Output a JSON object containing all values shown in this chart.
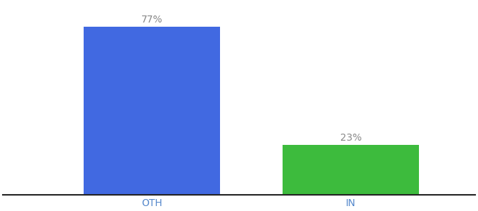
{
  "categories": [
    "OTH",
    "IN"
  ],
  "values": [
    77,
    23
  ],
  "bar_colors": [
    "#4169e1",
    "#3dbb3d"
  ],
  "label_texts": [
    "77%",
    "23%"
  ],
  "background_color": "#ffffff",
  "label_color": "#888888",
  "label_fontsize": 10,
  "tick_fontsize": 10,
  "tick_color": "#5588cc",
  "ylim": [
    0,
    88
  ],
  "bar_width": 0.55,
  "figsize": [
    6.8,
    3.0
  ],
  "dpi": 100,
  "spine_color": "#222222",
  "xlim": [
    -0.2,
    1.7
  ]
}
